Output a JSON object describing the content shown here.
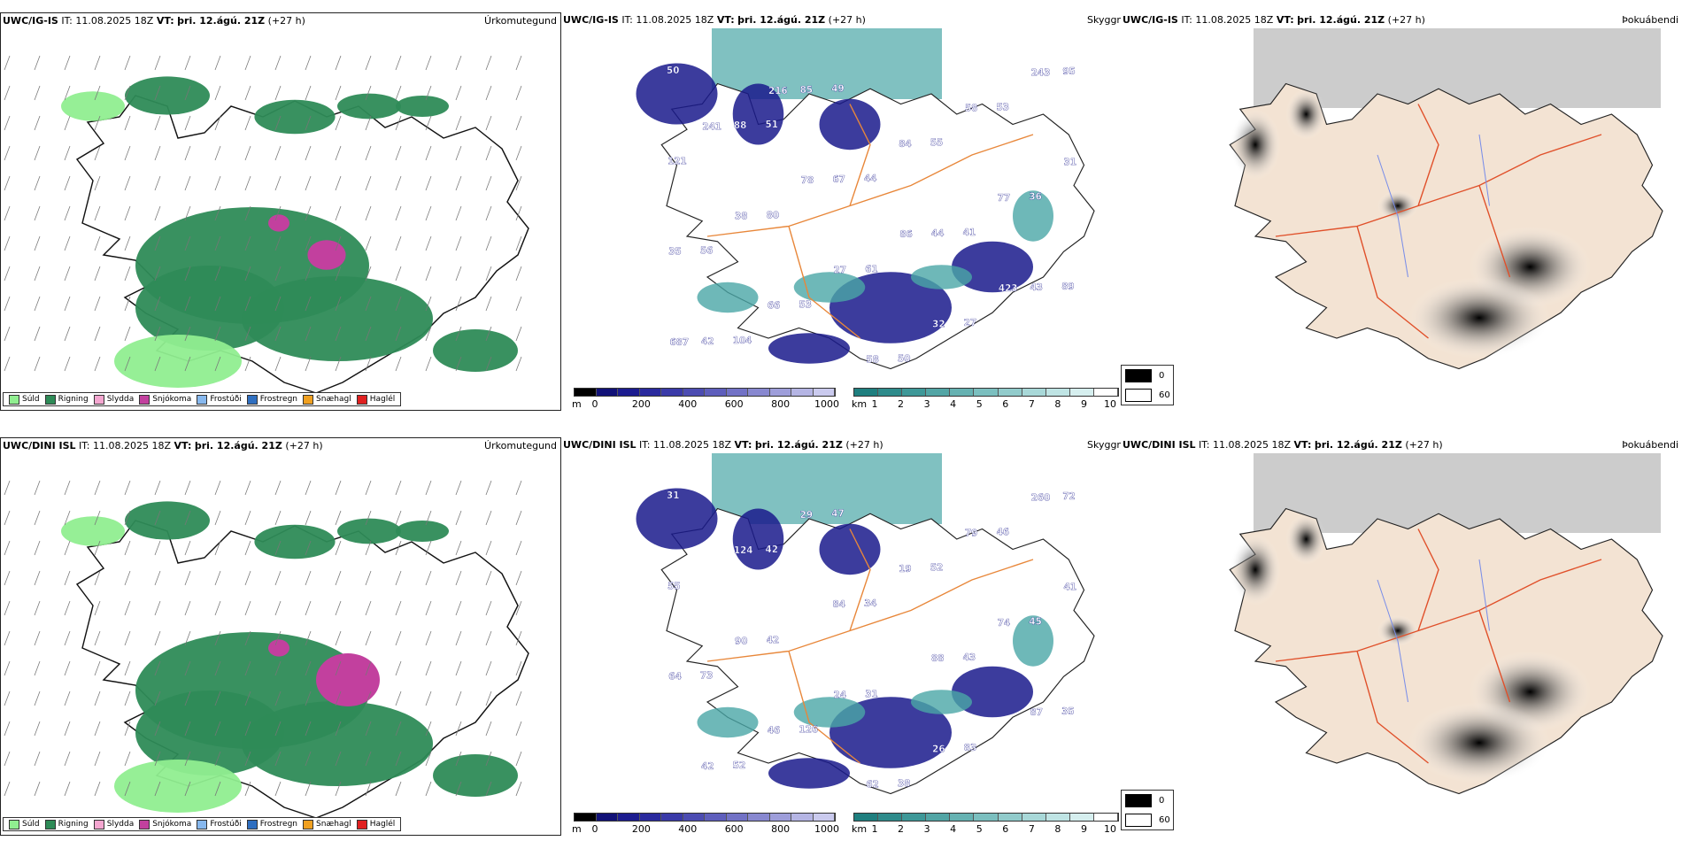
{
  "rows": [
    {
      "model": "UWC/IG-IS",
      "it_label": "IT:",
      "it_value": "11.08.2025 18Z",
      "vt_label": "VT:",
      "vt_value": "þri. 12.ágú. 21Z",
      "lead": "(+27 h)",
      "precip_title": "Úrkomutegund",
      "cloud_title": "Þokuábendi",
      "sky_title": "Skyggni",
      "visibility_labels": [
        "50",
        "51",
        "44",
        "41",
        "89",
        "104",
        "49",
        "55",
        "36",
        "56",
        "53",
        "50",
        "53",
        "121",
        "80",
        "61",
        "27",
        "95",
        "88",
        "67",
        "44",
        "43",
        "42",
        "85",
        "84",
        "77",
        "35",
        "66",
        "58",
        "58",
        "31",
        "38",
        "27",
        "32",
        "243",
        "241",
        "78",
        "86",
        "423",
        "687",
        "216"
      ]
    },
    {
      "model": "UWC/DINI ISL",
      "it_label": "IT:",
      "it_value": "11.08.2025 18Z",
      "vt_label": "VT:",
      "vt_value": "þri. 12.ágú. 21Z",
      "lead": "(+27 h)",
      "precip_title": "Úrkomutegund",
      "cloud_title": "Þokuábendi",
      "sky_title": "Skyggni",
      "visibility_labels": [
        "31",
        "42",
        "34",
        "43",
        "35",
        "52",
        "47",
        "52",
        "45",
        "73",
        "126",
        "38",
        "46",
        "55",
        "42",
        "31",
        "83",
        "72",
        "124",
        "84",
        "88",
        "87",
        "42",
        "29",
        "19",
        "74",
        "64",
        "46",
        "62",
        "79",
        "41",
        "90",
        "24",
        "26",
        "260"
      ]
    }
  ],
  "precip_legend": [
    {
      "label": "Súld",
      "color": "#90ee90"
    },
    {
      "label": "Rigning",
      "color": "#2e8b57"
    },
    {
      "label": "Slydda",
      "color": "#f4a6d0"
    },
    {
      "label": "Snjókoma",
      "color": "#c2409e"
    },
    {
      "label": "Frostúði",
      "color": "#87b8ee"
    },
    {
      "label": "Frostregn",
      "color": "#2f6fc0"
    },
    {
      "label": "Snæhagl",
      "color": "#f0a020"
    },
    {
      "label": "Haglél",
      "color": "#e02020"
    }
  ],
  "ceiling_bar": {
    "unit": "m",
    "ticks": [
      "0",
      "200",
      "400",
      "600",
      "800",
      "1000"
    ],
    "colors": [
      "#000000",
      "#111177",
      "#1c1c8f",
      "#2a2a9e",
      "#3a3aa8",
      "#4c4cb2",
      "#5e5ebc",
      "#7272c6",
      "#8888d0",
      "#9e9eda",
      "#b5b5e4",
      "#cacaee"
    ]
  },
  "vis_bar": {
    "unit": "km",
    "ticks": [
      "1",
      "2",
      "3",
      "4",
      "5",
      "6",
      "7",
      "8",
      "9",
      "10"
    ],
    "colors": [
      "#1f7f7f",
      "#2e8b8b",
      "#3e9898",
      "#52a5a5",
      "#66b2b2",
      "#7bbfbf",
      "#91cbcb",
      "#a8d8d8",
      "#bfe4e4",
      "#d6efef",
      "#ffffff"
    ]
  },
  "cloud_legend": [
    {
      "label": "0",
      "color": "#000000"
    },
    {
      "label": "60",
      "color": "#ffffff"
    }
  ]
}
